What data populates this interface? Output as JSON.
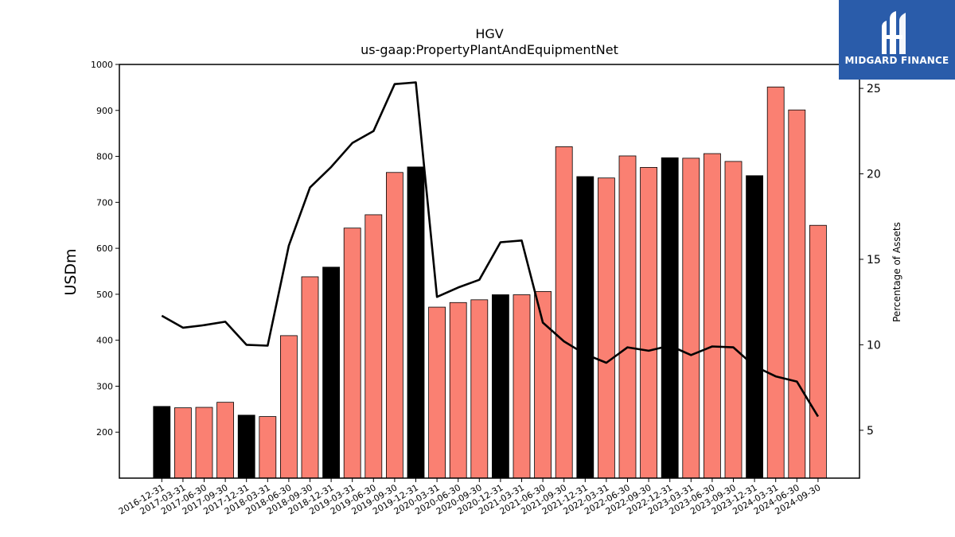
{
  "chart_data": {
    "type": "bar",
    "title": "HGV",
    "subtitle": "us-gaap:PropertyPlantAndEquipmentNet",
    "ylabel": "USDm",
    "y2label": "Percentage of Assets",
    "ylim": [
      100,
      1000
    ],
    "y2lim": [
      2.2,
      26.4
    ],
    "yticks": [
      200,
      300,
      400,
      500,
      600,
      700,
      800,
      900,
      1000
    ],
    "y2ticks": [
      5,
      10,
      15,
      20,
      25
    ],
    "categories": [
      "2016-12-31",
      "2017-03-31",
      "2017-06-30",
      "2017-09-30",
      "2017-12-31",
      "2018-03-31",
      "2018-06-30",
      "2018-09-30",
      "2018-12-31",
      "2019-03-31",
      "2019-06-30",
      "2019-09-30",
      "2019-12-31",
      "2020-03-31",
      "2020-06-30",
      "2020-09-30",
      "2020-12-31",
      "2021-03-31",
      "2021-06-30",
      "2021-09-30",
      "2021-12-31",
      "2022-03-31",
      "2022-06-30",
      "2022-09-30",
      "2022-12-31",
      "2023-03-31",
      "2023-06-30",
      "2023-09-30",
      "2023-12-31",
      "2024-03-31",
      "2024-06-30",
      "2024-09-30"
    ],
    "series": [
      {
        "type": "bar",
        "values": [
          256,
          253,
          254,
          265,
          237,
          234,
          410,
          538,
          559,
          644,
          673,
          765,
          777,
          472,
          482,
          488,
          499,
          499,
          506,
          821,
          756,
          753,
          801,
          776,
          797,
          796,
          806,
          789,
          758,
          951,
          901,
          650
        ],
        "colors": [
          "#000000",
          "#fa8072",
          "#fa8072",
          "#fa8072",
          "#000000",
          "#fa8072",
          "#fa8072",
          "#fa8072",
          "#000000",
          "#fa8072",
          "#fa8072",
          "#fa8072",
          "#000000",
          "#fa8072",
          "#fa8072",
          "#fa8072",
          "#000000",
          "#fa8072",
          "#fa8072",
          "#fa8072",
          "#000000",
          "#fa8072",
          "#fa8072",
          "#fa8072",
          "#000000",
          "#fa8072",
          "#fa8072",
          "#fa8072",
          "#000000",
          "#fa8072",
          "#fa8072",
          "#fa8072"
        ]
      },
      {
        "type": "line",
        "axis": "right",
        "values": [
          11.7,
          11.0,
          11.15,
          11.35,
          10.0,
          9.95,
          15.8,
          19.2,
          20.4,
          21.8,
          22.5,
          25.25,
          25.35,
          12.8,
          13.35,
          13.8,
          16.0,
          16.1,
          11.3,
          10.2,
          9.45,
          8.95,
          9.85,
          9.65,
          9.95,
          9.4,
          9.9,
          9.85,
          8.75,
          8.15,
          7.85,
          5.8
        ],
        "color": "#000000"
      }
    ]
  },
  "logo": {
    "text": "MIDGARD FINANCE"
  }
}
